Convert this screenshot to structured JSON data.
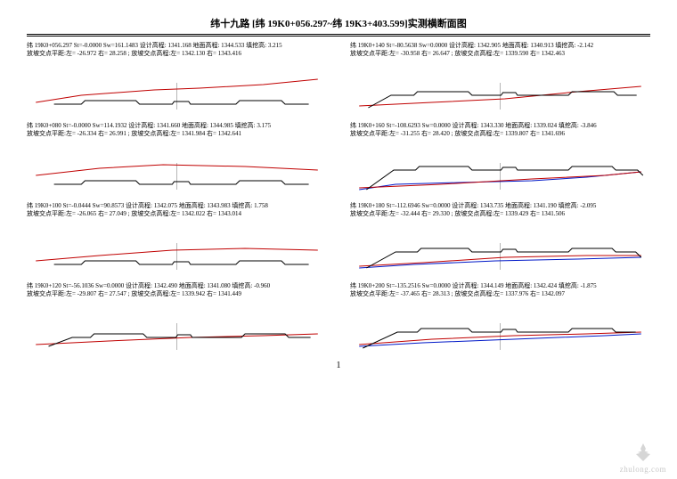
{
  "title": "纬十九路 [纬 19K0+056.297~纬 19K3+403.599]实测横断面图",
  "page_number": "1",
  "watermark_text": "zhulong.com",
  "layout": {
    "rows": 4,
    "cols": 2,
    "chart_viewbox": [
      0,
      0,
      330,
      64
    ],
    "colors": {
      "ground": "#c00000",
      "design": "#000000",
      "extra": "#0018c8",
      "axis": "#888888"
    },
    "stroke_width": 1
  },
  "panels": [
    {
      "line1": "纬 19K0+056.297 St=-0.0000 Sw=161.1483 设计高程: 1341.168 地面高程: 1344.533 填挖高: 3.215",
      "line2": "放坡交点平距:左= -26.972 右= 28.258 ; 放坡交点高程:左= 1342.130 右= 1343.416",
      "ground": [
        [
          10,
          48
        ],
        [
          60,
          40
        ],
        [
          140,
          34
        ],
        [
          190,
          32
        ],
        [
          260,
          28
        ],
        [
          320,
          22
        ]
      ],
      "design": [
        [
          30,
          50
        ],
        [
          60,
          50
        ],
        [
          64,
          46
        ],
        [
          120,
          46
        ],
        [
          124,
          50
        ],
        [
          160,
          50
        ],
        [
          162,
          47
        ],
        [
          178,
          47
        ],
        [
          180,
          50
        ],
        [
          230,
          50
        ],
        [
          234,
          46
        ],
        [
          280,
          46
        ],
        [
          284,
          50
        ],
        [
          310,
          50
        ]
      ],
      "extra": null
    },
    {
      "line1": "纬 19K0+140 St=-80.5638 Sw=0.0000 设计高程: 1342.905 地面高程: 1340.913 填挖高: -2.142",
      "line2": "放坡交点平距:左= -30.958 右= 26.647 ; 放坡交点高程:左= 1339.590 右= 1342.463",
      "ground": [
        [
          10,
          52
        ],
        [
          90,
          48
        ],
        [
          170,
          44
        ],
        [
          250,
          36
        ],
        [
          320,
          30
        ]
      ],
      "design": [
        [
          20,
          54
        ],
        [
          45,
          40
        ],
        [
          70,
          40
        ],
        [
          74,
          36
        ],
        [
          130,
          36
        ],
        [
          134,
          40
        ],
        [
          166,
          40
        ],
        [
          168,
          37
        ],
        [
          182,
          37
        ],
        [
          184,
          40
        ],
        [
          240,
          40
        ],
        [
          244,
          36
        ],
        [
          290,
          36
        ],
        [
          294,
          40
        ],
        [
          315,
          40
        ]
      ],
      "extra": null
    },
    {
      "line1": "纬 19K0+080 St=-0.0000 Sw=114.1932 设计高程: 1341.660 地面高程: 1344.985 填挖高: 3.175",
      "line2": "放坡交点平距:左= -26.334 右= 26.991 ; 放坡交点高程:左= 1341.984 右= 1342.641",
      "ground": [
        [
          10,
          40
        ],
        [
          80,
          32
        ],
        [
          150,
          28
        ],
        [
          240,
          30
        ],
        [
          320,
          34
        ]
      ],
      "design": [
        [
          30,
          50
        ],
        [
          60,
          50
        ],
        [
          64,
          46
        ],
        [
          120,
          46
        ],
        [
          124,
          50
        ],
        [
          160,
          50
        ],
        [
          162,
          47
        ],
        [
          178,
          47
        ],
        [
          180,
          50
        ],
        [
          230,
          50
        ],
        [
          234,
          46
        ],
        [
          280,
          46
        ],
        [
          284,
          50
        ],
        [
          310,
          50
        ]
      ],
      "extra": null
    },
    {
      "line1": "纬 19K0+160 St=-108.6293 Sw=0.0000 设计高程: 1343.330 地面高程: 1339.024 填挖高: -3.846",
      "line2": "放坡交点平距:左= -31.255 右= 28.420 ; 放坡交点高程:左= 1339.807 右= 1341.696",
      "ground": [
        [
          10,
          54
        ],
        [
          100,
          50
        ],
        [
          200,
          44
        ],
        [
          280,
          40
        ],
        [
          320,
          36
        ]
      ],
      "design": [
        [
          18,
          56
        ],
        [
          48,
          34
        ],
        [
          72,
          34
        ],
        [
          76,
          30
        ],
        [
          130,
          30
        ],
        [
          134,
          34
        ],
        [
          166,
          34
        ],
        [
          168,
          31
        ],
        [
          182,
          31
        ],
        [
          184,
          34
        ],
        [
          240,
          34
        ],
        [
          244,
          30
        ],
        [
          288,
          30
        ],
        [
          292,
          34
        ],
        [
          316,
          34
        ],
        [
          322,
          40
        ]
      ],
      "extra": [
        [
          10,
          56
        ],
        [
          50,
          50
        ],
        [
          120,
          48
        ],
        [
          200,
          46
        ],
        [
          260,
          42
        ],
        [
          320,
          36
        ]
      ]
    },
    {
      "line1": "纬 19K0+100 St=-0.0444 Sw=90.8573 设计高程: 1342.075 地面高程: 1343.983 填挖高: 1.758",
      "line2": "放坡交点平距:左= -26.065 右= 27.049 ; 放坡交点高程:左= 1342.022 右= 1343.014",
      "ground": [
        [
          10,
          46
        ],
        [
          80,
          40
        ],
        [
          160,
          34
        ],
        [
          240,
          32
        ],
        [
          320,
          34
        ]
      ],
      "design": [
        [
          30,
          50
        ],
        [
          60,
          50
        ],
        [
          64,
          46
        ],
        [
          120,
          46
        ],
        [
          124,
          50
        ],
        [
          160,
          50
        ],
        [
          162,
          47
        ],
        [
          178,
          47
        ],
        [
          180,
          50
        ],
        [
          230,
          50
        ],
        [
          234,
          46
        ],
        [
          280,
          46
        ],
        [
          284,
          50
        ],
        [
          310,
          50
        ]
      ],
      "extra": null
    },
    {
      "line1": "纬 19K0+180 St=-112.6946 Sw=0.0000 设计高程: 1343.735 地面高程: 1341.190 填挖高: -2.095",
      "line2": "放坡交点平距:左= -32.444 右= 29.330 ; 放坡交点高程:左= 1339.429 右= 1341.506",
      "ground": [
        [
          10,
          52
        ],
        [
          80,
          48
        ],
        [
          170,
          42
        ],
        [
          260,
          40
        ],
        [
          320,
          40
        ]
      ],
      "design": [
        [
          18,
          54
        ],
        [
          50,
          36
        ],
        [
          74,
          36
        ],
        [
          78,
          32
        ],
        [
          130,
          32
        ],
        [
          134,
          36
        ],
        [
          166,
          36
        ],
        [
          168,
          33
        ],
        [
          182,
          33
        ],
        [
          184,
          36
        ],
        [
          240,
          36
        ],
        [
          244,
          32
        ],
        [
          288,
          32
        ],
        [
          292,
          36
        ],
        [
          314,
          36
        ],
        [
          320,
          42
        ]
      ],
      "extra": [
        [
          10,
          54
        ],
        [
          70,
          50
        ],
        [
          160,
          46
        ],
        [
          250,
          44
        ],
        [
          320,
          42
        ]
      ]
    },
    {
      "line1": "纬 19K0+120 St=-56.1036 Sw=0.0000 设计高程: 1342.490 地面高程: 1341.080 填挖高: -0.960",
      "line2": "放坡交点平距:左= -29.807 右= 27.547 ; 放坡交点高程:左= 1339.942 右= 1341.449",
      "ground": [
        [
          10,
          50
        ],
        [
          90,
          46
        ],
        [
          180,
          42
        ],
        [
          260,
          40
        ],
        [
          320,
          38
        ]
      ],
      "design": [
        [
          24,
          52
        ],
        [
          50,
          42
        ],
        [
          70,
          42
        ],
        [
          74,
          38
        ],
        [
          128,
          38
        ],
        [
          132,
          42
        ],
        [
          164,
          42
        ],
        [
          166,
          39
        ],
        [
          180,
          39
        ],
        [
          182,
          42
        ],
        [
          236,
          42
        ],
        [
          240,
          38
        ],
        [
          284,
          38
        ],
        [
          288,
          42
        ],
        [
          312,
          42
        ]
      ],
      "extra": null
    },
    {
      "line1": "纬 19K0+200 St=-135.2516 Sw=0.0000 设计高程: 1344.149 地面高程: 1342.424 填挖高: -1.875",
      "line2": "放坡交点平距:左= -37.465 右= 28.313 ; 放坡交点高程:左= 1337.976 右= 1342.097",
      "ground": [
        [
          10,
          50
        ],
        [
          90,
          44
        ],
        [
          180,
          40
        ],
        [
          260,
          38
        ],
        [
          320,
          36
        ]
      ],
      "design": [
        [
          14,
          54
        ],
        [
          52,
          36
        ],
        [
          74,
          36
        ],
        [
          78,
          32
        ],
        [
          130,
          32
        ],
        [
          134,
          36
        ],
        [
          166,
          36
        ],
        [
          168,
          33
        ],
        [
          182,
          33
        ],
        [
          184,
          36
        ],
        [
          240,
          36
        ],
        [
          244,
          32
        ],
        [
          288,
          32
        ],
        [
          292,
          36
        ],
        [
          314,
          36
        ]
      ],
      "extra": [
        [
          10,
          52
        ],
        [
          80,
          48
        ],
        [
          180,
          44
        ],
        [
          280,
          40
        ],
        [
          320,
          38
        ]
      ]
    }
  ]
}
